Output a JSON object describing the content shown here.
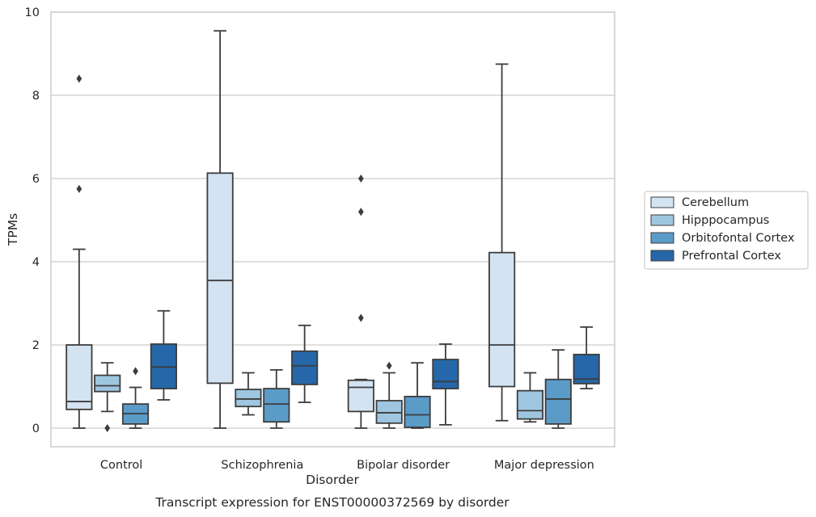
{
  "chart_data": {
    "type": "box",
    "xlabel": "Disorder",
    "ylabel": "TPMs",
    "caption": "Transcript expression for ENST00000372569 by disorder",
    "ylim": [
      -0.45,
      10
    ],
    "yticks": [
      0,
      2,
      4,
      6,
      8,
      10
    ],
    "grid": "horizontal",
    "legend_position": "right",
    "categories": [
      "Control",
      "Schizophrenia",
      "Bipolar disorder",
      "Major depression"
    ],
    "series": [
      {
        "name": "Cerebellum",
        "color": "#d3e3f2",
        "boxes": [
          {
            "whislo": 0.0,
            "q1": 0.45,
            "median": 0.64,
            "q3": 2.0,
            "whishi": 4.3,
            "fliers": [
              5.75,
              8.4
            ]
          },
          {
            "whislo": 0.0,
            "q1": 1.08,
            "median": 3.55,
            "q3": 6.13,
            "whishi": 9.55,
            "fliers": []
          },
          {
            "whislo": 0.0,
            "q1": 0.4,
            "median": 0.98,
            "q3": 1.15,
            "whishi": 1.17,
            "fliers": [
              2.65,
              5.2,
              6.0
            ]
          },
          {
            "whislo": 0.18,
            "q1": 1.0,
            "median": 2.0,
            "q3": 4.22,
            "whishi": 8.75,
            "fliers": []
          }
        ]
      },
      {
        "name": "Hipppocampus",
        "color": "#9ec6e0",
        "boxes": [
          {
            "whislo": 0.4,
            "q1": 0.88,
            "median": 1.02,
            "q3": 1.27,
            "whishi": 1.57,
            "fliers": [
              0.0
            ]
          },
          {
            "whislo": 0.32,
            "q1": 0.52,
            "median": 0.7,
            "q3": 0.93,
            "whishi": 1.33,
            "fliers": []
          },
          {
            "whislo": 0.0,
            "q1": 0.12,
            "median": 0.37,
            "q3": 0.66,
            "whishi": 1.33,
            "fliers": [
              1.5
            ]
          },
          {
            "whislo": 0.15,
            "q1": 0.22,
            "median": 0.42,
            "q3": 0.9,
            "whishi": 1.33,
            "fliers": []
          }
        ]
      },
      {
        "name": "Orbitofontal Cortex",
        "color": "#5b9bc8",
        "boxes": [
          {
            "whislo": 0.0,
            "q1": 0.1,
            "median": 0.35,
            "q3": 0.58,
            "whishi": 0.98,
            "fliers": [
              1.37
            ]
          },
          {
            "whislo": 0.0,
            "q1": 0.15,
            "median": 0.58,
            "q3": 0.95,
            "whishi": 1.4,
            "fliers": []
          },
          {
            "whislo": 0.0,
            "q1": 0.02,
            "median": 0.32,
            "q3": 0.76,
            "whishi": 1.57,
            "fliers": []
          },
          {
            "whislo": 0.0,
            "q1": 0.1,
            "median": 0.7,
            "q3": 1.17,
            "whishi": 1.88,
            "fliers": []
          }
        ]
      },
      {
        "name": "Prefrontal Cortex",
        "color": "#2567a8",
        "boxes": [
          {
            "whislo": 0.68,
            "q1": 0.95,
            "median": 1.47,
            "q3": 2.02,
            "whishi": 2.82,
            "fliers": []
          },
          {
            "whislo": 0.62,
            "q1": 1.05,
            "median": 1.5,
            "q3": 1.85,
            "whishi": 2.47,
            "fliers": []
          },
          {
            "whislo": 0.08,
            "q1": 0.95,
            "median": 1.12,
            "q3": 1.65,
            "whishi": 2.02,
            "fliers": []
          },
          {
            "whislo": 0.95,
            "q1": 1.07,
            "median": 1.18,
            "q3": 1.77,
            "whishi": 2.43,
            "fliers": []
          }
        ]
      }
    ]
  }
}
